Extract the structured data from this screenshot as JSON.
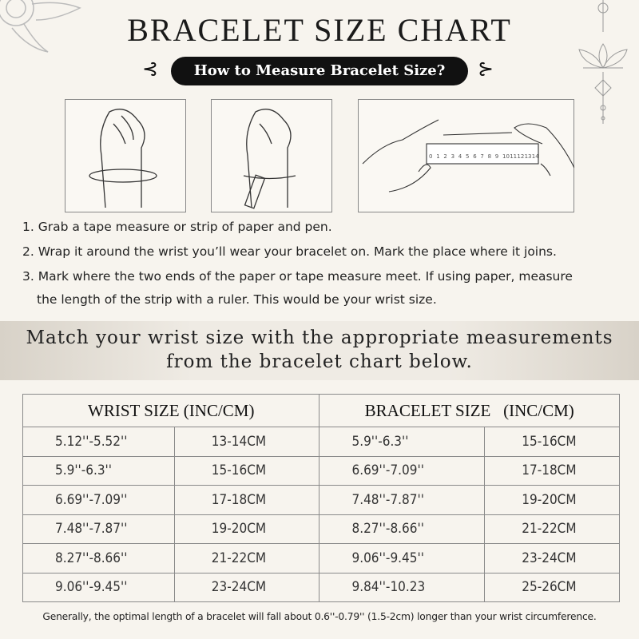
{
  "title": "BRACELET SIZE CHART",
  "subtitle": "How to Measure Bracelet Size?",
  "ruler_numbers": [
    "0",
    "1",
    "2",
    "3",
    "4",
    "5",
    "6",
    "7",
    "8",
    "9",
    "10",
    "11",
    "12",
    "13",
    "14"
  ],
  "steps": [
    "1. Grab a tape measure or strip of paper and pen.",
    "2. Wrap it around the wrist you’ll wear your bracelet on. Mark the place where it joins.",
    "3. Mark where the two ends of the paper or tape measure meet. If using paper, measure",
    "the length of the strip with a ruler. This would be your wrist size."
  ],
  "band": {
    "line1": "Match your wrist size with the appropriate measurements",
    "line2": "from the bracelet chart below."
  },
  "table": {
    "headers": [
      "WRIST SIZE (INC/CM)",
      "BRACELET SIZE   (INC/CM)"
    ],
    "rows": [
      [
        "5.12''-5.52''",
        "13-14CM",
        "5.9''-6.3''",
        "15-16CM"
      ],
      [
        "5.9''-6.3''",
        "15-16CM",
        "6.69''-7.09''",
        "17-18CM"
      ],
      [
        "6.69''-7.09''",
        "17-18CM",
        "7.48''-7.87''",
        "19-20CM"
      ],
      [
        "7.48''-7.87''",
        "19-20CM",
        "8.27''-8.66''",
        "21-22CM"
      ],
      [
        "8.27''-8.66''",
        "21-22CM",
        "9.06''-9.45''",
        "23-24CM"
      ],
      [
        "9.06''-9.45''",
        "23-24CM",
        "9.84''-10.23",
        "25-26CM"
      ]
    ]
  },
  "note": "Generally, the optimal length of a bracelet will fall about 0.6''-0.79'' (1.5-2cm) longer than your wrist circumference.",
  "colors": {
    "background": "#f7f4ee",
    "pill": "#111111",
    "border": "#8a8a8a"
  }
}
